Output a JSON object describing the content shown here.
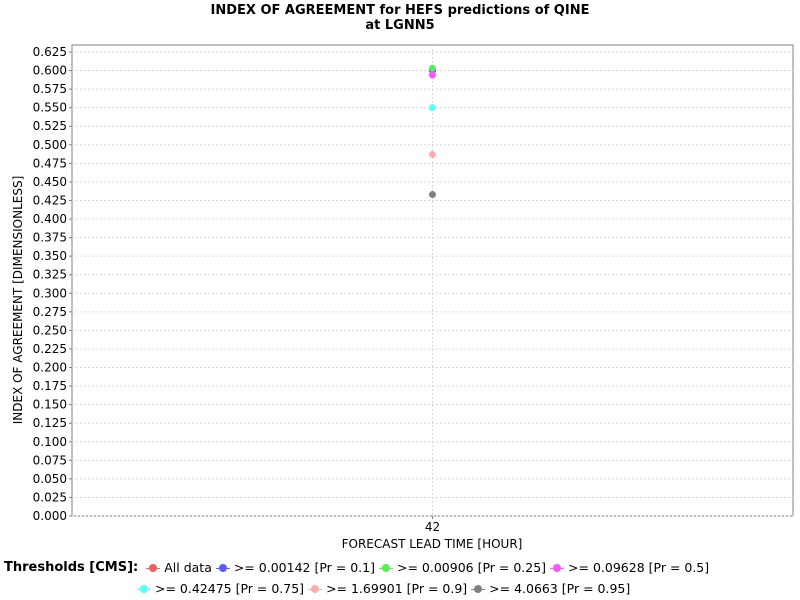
{
  "chart_data": {
    "type": "scatter",
    "title": "INDEX OF AGREEMENT for HEFS predictions of QINE",
    "subtitle": "at LGNN5",
    "xlabel": "FORECAST LEAD TIME [HOUR]",
    "ylabel": "INDEX OF AGREEMENT [DIMENSIONLESS]",
    "categories": [
      "42"
    ],
    "ylim": [
      0,
      0.625
    ],
    "yticks": [
      "0.000",
      "0.025",
      "0.050",
      "0.075",
      "0.100",
      "0.125",
      "0.150",
      "0.175",
      "0.200",
      "0.225",
      "0.250",
      "0.275",
      "0.300",
      "0.325",
      "0.350",
      "0.375",
      "0.400",
      "0.425",
      "0.450",
      "0.475",
      "0.500",
      "0.525",
      "0.550",
      "0.575",
      "0.600",
      "0.625"
    ],
    "grid": true,
    "legend_position": "bottom",
    "legend_title": "Thresholds [CMS]:",
    "series": [
      {
        "name": "All data",
        "color": "#f06060",
        "values": [
          0.601
        ]
      },
      {
        "name": ">= 0.00142 [Pr = 0.1]",
        "color": "#5a5aff",
        "values": [
          0.6
        ]
      },
      {
        "name": ">= 0.00906 [Pr = 0.25]",
        "color": "#55ee55",
        "values": [
          0.603
        ]
      },
      {
        "name": ">= 0.09628 [Pr = 0.5]",
        "color": "#ff55ff",
        "values": [
          0.594
        ]
      },
      {
        "name": ">= 0.42475 [Pr = 0.75]",
        "color": "#55ffff",
        "values": [
          0.55
        ]
      },
      {
        "name": ">= 1.69901 [Pr = 0.9]",
        "color": "#ffaaaa",
        "values": [
          0.487
        ]
      },
      {
        "name": ">= 4.0663 [Pr = 0.95]",
        "color": "#808080",
        "values": [
          0.433
        ]
      }
    ]
  }
}
